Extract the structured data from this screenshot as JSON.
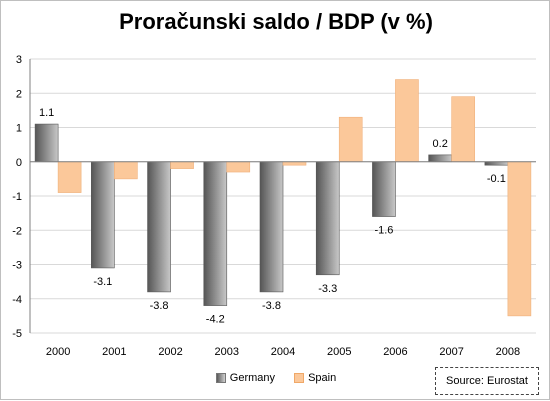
{
  "chart_data": {
    "type": "bar",
    "title": "Proračunski saldo / BDP (v %)",
    "categories": [
      "2000",
      "2001",
      "2002",
      "2003",
      "2004",
      "2005",
      "2006",
      "2007",
      "2008"
    ],
    "series": [
      {
        "name": "Germany",
        "values": [
          1.1,
          -3.1,
          -3.8,
          -4.2,
          -3.8,
          -3.3,
          -1.6,
          0.2,
          -0.1
        ],
        "labels": [
          "1.1",
          "-3.1",
          "-3.8",
          "-4.2",
          "-3.8",
          "-3.3",
          "-1.6",
          "0.2",
          "-0.1"
        ]
      },
      {
        "name": "Spain",
        "values": [
          -0.9,
          -0.5,
          -0.2,
          -0.3,
          -0.1,
          1.3,
          2.4,
          1.9,
          -4.5
        ]
      }
    ],
    "ylim": [
      -5,
      3
    ],
    "yticks": [
      3,
      2,
      1,
      0,
      -1,
      -2,
      -3,
      -4,
      -5
    ],
    "grid": true,
    "legend_position": "bottom",
    "colors": {
      "Germany": "#7f7f7f",
      "Spain": "#fbc89a"
    }
  },
  "source": "Source: Eurostat"
}
